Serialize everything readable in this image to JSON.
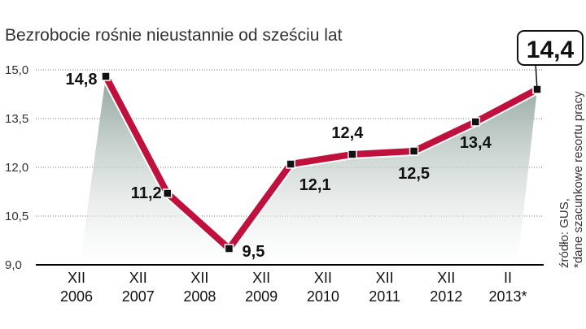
{
  "chart_data": {
    "type": "line",
    "title": "Bezrobocie rośnie nieustannie od sześciu lat",
    "categories": [
      [
        "XII",
        "2006"
      ],
      [
        "XII",
        "2007"
      ],
      [
        "XII",
        "2008"
      ],
      [
        "XII",
        "2009"
      ],
      [
        "XII",
        "2010"
      ],
      [
        "XII",
        "2011"
      ],
      [
        "XII",
        "2012"
      ],
      [
        "II",
        "2013*"
      ]
    ],
    "values": [
      14.8,
      11.2,
      9.5,
      12.1,
      12.4,
      12.5,
      13.4,
      14.4
    ],
    "data_labels": [
      "14,8",
      "11,2",
      "9,5",
      "12,1",
      "12,4",
      "12,5",
      "13,4",
      "14,4"
    ],
    "highlight_index": 7,
    "yticks": [
      9.0,
      10.5,
      12.0,
      13.5,
      15.0
    ],
    "ytick_labels": [
      "9,0",
      "10,5",
      "12,0",
      "13,5",
      "15,0"
    ],
    "ylim": [
      9.0,
      15.0
    ],
    "grid": true,
    "line_color": "#c0103c",
    "area_color": "#8fa39b",
    "source_lines": [
      "źródło: GUS,",
      "*dane szacunkowe resortu pracy"
    ]
  }
}
